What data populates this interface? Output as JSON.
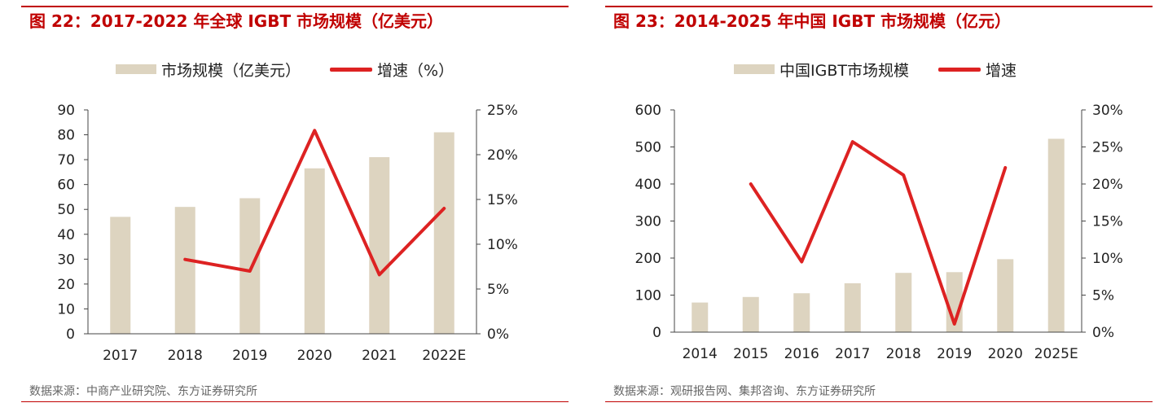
{
  "colors": {
    "bar": "#ddd4c0",
    "line": "#dd2222",
    "accent": "#c00000",
    "axis": "#444444"
  },
  "chart_data": [
    {
      "type": "bar",
      "title": "图 22：2017-2022 年全球 IGBT 市场规模（亿美元）",
      "categories": [
        "2017",
        "2018",
        "2019",
        "2020",
        "2021",
        "2022E"
      ],
      "series": [
        {
          "name": "市场规模（亿美元）",
          "type": "bar",
          "axis": "left",
          "values": [
            47,
            51,
            54.5,
            66.5,
            71,
            81
          ]
        },
        {
          "name": "增速（%）",
          "type": "line",
          "axis": "right",
          "values": [
            null,
            8.3,
            7.0,
            22.7,
            6.6,
            14.0
          ]
        }
      ],
      "ylim_left": [
        0,
        90
      ],
      "ylim_right": [
        0,
        25
      ],
      "yticks_left": [
        "0",
        "10",
        "20",
        "30",
        "40",
        "50",
        "60",
        "70",
        "80",
        "90"
      ],
      "yticks_right": [
        "0%",
        "5%",
        "10%",
        "15%",
        "20%",
        "25%"
      ],
      "legend_position": "top-center",
      "grid": false,
      "source": "数据来源：中商产业研究院、东方证券研究所"
    },
    {
      "type": "bar",
      "title": "图 23：2014-2025 年中国 IGBT 市场规模（亿元）",
      "categories": [
        "2014",
        "2015",
        "2016",
        "2017",
        "2018",
        "2019",
        "2020",
        "2025E"
      ],
      "series": [
        {
          "name": "中国IGBT市场规模",
          "type": "bar",
          "axis": "left",
          "values": [
            80,
            95,
            105,
            132,
            160,
            162,
            197,
            522
          ]
        },
        {
          "name": "增速",
          "type": "line",
          "axis": "right",
          "values": [
            null,
            20.0,
            9.5,
            25.7,
            21.2,
            1.1,
            22.2,
            null
          ]
        }
      ],
      "ylim_left": [
        0,
        600
      ],
      "ylim_right": [
        0,
        30
      ],
      "yticks_left": [
        "0",
        "100",
        "200",
        "300",
        "400",
        "500",
        "600"
      ],
      "yticks_right": [
        "0%",
        "5%",
        "10%",
        "15%",
        "20%",
        "25%",
        "30%"
      ],
      "legend_position": "top-center",
      "grid": false,
      "source": "数据来源：观研报告网、集邦咨询、东方证券研究所"
    }
  ]
}
